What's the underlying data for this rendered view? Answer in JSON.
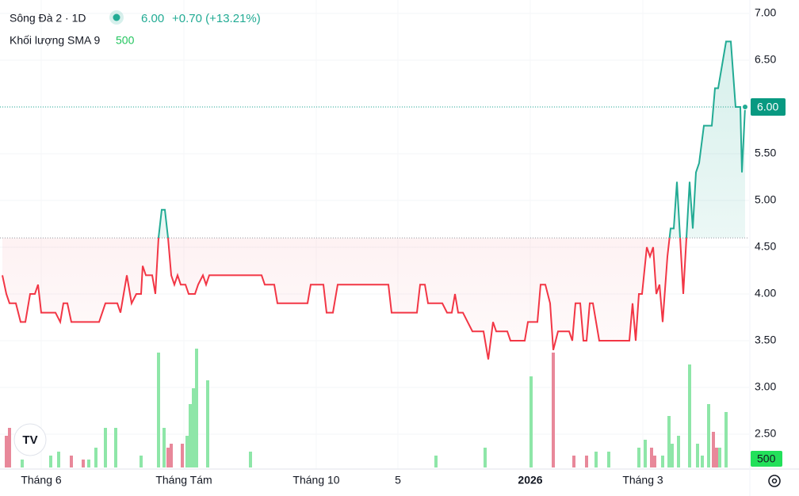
{
  "chart_data": {
    "type": "baseline",
    "legend_title": "Sông Đà 2 · 1D",
    "last": {
      "value": 6,
      "label": "6.00"
    },
    "change": "+0.70 (+13.21%)",
    "volume_sma": {
      "name": "Khối lượng SMA 9",
      "value": 500
    },
    "baseline": 4.6,
    "up_color": "#22ab94",
    "down_color": "#f23645",
    "x": [
      3,
      8,
      12,
      20,
      26,
      32,
      38,
      44,
      48,
      52,
      70,
      76,
      80,
      85,
      90,
      125,
      133,
      148,
      152,
      160,
      166,
      172,
      178,
      180,
      184,
      192,
      196,
      200,
      204,
      208,
      212,
      216,
      220,
      224,
      228,
      234,
      238,
      246,
      250,
      256,
      260,
      264,
      330,
      334,
      346,
      350,
      388,
      392,
      408,
      412,
      420,
      426,
      490,
      494,
      526,
      530,
      536,
      540,
      558,
      564,
      570,
      574,
      578,
      584,
      590,
      596,
      610,
      616,
      622,
      626,
      640,
      644,
      662,
      666,
      678,
      682,
      688,
      694,
      698,
      704,
      718,
      722,
      726,
      732,
      736,
      740,
      744,
      748,
      752,
      756,
      794,
      798,
      802,
      806,
      810,
      816,
      820,
      824,
      828,
      832,
      836,
      842,
      846,
      850,
      854,
      858,
      862,
      866,
      870,
      874,
      878,
      882,
      888,
      898,
      902,
      906,
      910,
      916,
      922,
      928,
      934,
      936,
      940
    ],
    "values": [
      4.2,
      4.0,
      3.9,
      3.9,
      3.7,
      3.7,
      4.0,
      4.0,
      4.1,
      3.8,
      3.8,
      3.7,
      3.9,
      3.9,
      3.7,
      3.7,
      3.9,
      3.9,
      3.8,
      4.2,
      3.9,
      4.0,
      4.0,
      4.3,
      4.2,
      4.2,
      4.0,
      4.6,
      4.9,
      4.9,
      4.6,
      4.2,
      4.1,
      4.2,
      4.1,
      4.1,
      4.0,
      4.0,
      4.1,
      4.2,
      4.1,
      4.2,
      4.2,
      4.1,
      4.1,
      3.9,
      3.9,
      4.1,
      4.1,
      3.8,
      3.8,
      4.1,
      4.1,
      3.8,
      3.8,
      4.1,
      4.1,
      3.9,
      3.9,
      3.8,
      3.8,
      4.0,
      3.8,
      3.8,
      3.7,
      3.6,
      3.6,
      3.3,
      3.7,
      3.6,
      3.6,
      3.5,
      3.5,
      3.7,
      3.7,
      4.1,
      4.1,
      3.9,
      3.4,
      3.6,
      3.6,
      3.5,
      3.9,
      3.9,
      3.5,
      3.5,
      3.9,
      3.9,
      3.7,
      3.5,
      3.5,
      3.9,
      3.5,
      4.0,
      4.0,
      4.5,
      4.4,
      4.5,
      4.0,
      4.1,
      3.7,
      4.4,
      4.7,
      4.7,
      5.2,
      4.6,
      4.0,
      4.6,
      5.2,
      4.7,
      5.3,
      5.4,
      5.8,
      5.8,
      6.2,
      6.2,
      6.4,
      6.7,
      6.7,
      6.0,
      6.0,
      5.3,
      6.0
    ],
    "volume": [
      {
        "name": "up",
        "color": "#8ee6a8",
        "x": [
          28,
          64,
          74,
          112,
          121,
          133,
          146,
          178,
          200,
          207,
          236,
          240,
          244,
          248,
          262,
          316,
          550,
          612,
          670,
          752,
          768,
          806,
          814,
          836,
          844,
          848,
          856,
          870,
          880,
          886,
          894,
          908,
          916
        ],
        "values": [
          200,
          300,
          400,
          200,
          500,
          1000,
          1000,
          300,
          2900,
          1000,
          800,
          1600,
          2000,
          3000,
          2200,
          400,
          300,
          500,
          2300,
          400,
          400,
          500,
          700,
          300,
          1300,
          600,
          800,
          2600,
          600,
          300,
          1600,
          500,
          1400
        ]
      },
      {
        "name": "down",
        "color": "#e8889a",
        "x": [
          8,
          12,
          90,
          105,
          212,
          216,
          230,
          698,
          724,
          740,
          822,
          826,
          900,
          904
        ],
        "values": [
          800,
          1000,
          300,
          200,
          500,
          600,
          600,
          2900,
          300,
          300,
          500,
          300,
          900,
          500
        ]
      }
    ],
    "vlim": [
      0,
      3000
    ],
    "xlim": [
      0,
      945
    ],
    "xticks": [
      {
        "value": 52,
        "label": "Tháng 6"
      },
      {
        "value": 232,
        "label": "Tháng Tám"
      },
      {
        "value": 399,
        "label": "Tháng 10"
      },
      {
        "value": 502,
        "label": "5"
      },
      {
        "value": 669,
        "label": "2026"
      },
      {
        "value": 811,
        "label": "Tháng 3"
      }
    ],
    "ylim": [
      2.35,
      7.1
    ],
    "yticks": [
      {
        "value": 2.5,
        "label": "2.50"
      },
      {
        "value": 3,
        "label": "3.00"
      },
      {
        "value": 3.5,
        "label": "3.50"
      },
      {
        "value": 4,
        "label": "4.00"
      },
      {
        "value": 4.5,
        "label": "4.50"
      },
      {
        "value": 5,
        "label": "5.00"
      },
      {
        "value": 5.5,
        "label": "5.50"
      },
      {
        "value": 6,
        "label": "6.00"
      },
      {
        "value": 6.5,
        "label": "6.50"
      },
      {
        "value": 7,
        "label": "7.00"
      }
    ]
  }
}
